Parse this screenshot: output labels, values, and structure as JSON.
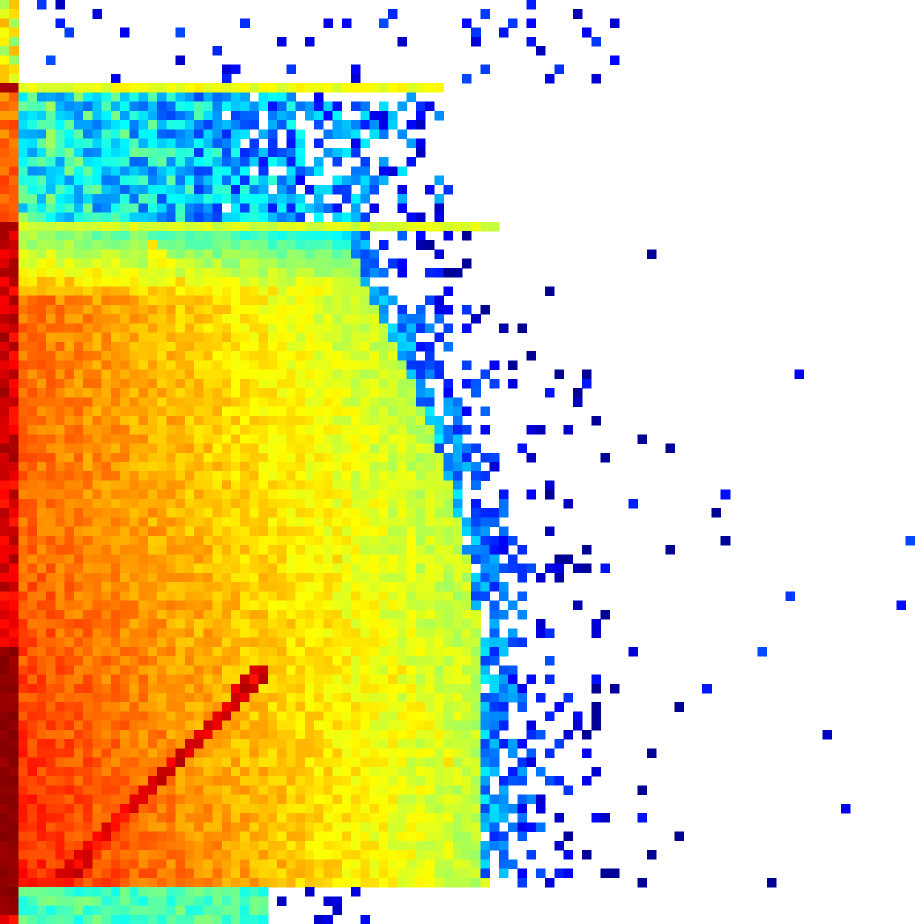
{
  "chart_data": {
    "type": "heatmap",
    "title": "",
    "xlabel": "",
    "ylabel": "",
    "grid": false,
    "legend": "none",
    "axes_visible": false,
    "colormap": "jet",
    "background": "#ffffff",
    "dimensions": {
      "cols": 100,
      "rows": 100
    },
    "value_range": [
      0,
      1
    ],
    "seed": 7,
    "structure": {
      "left_column": {
        "col_start": 0,
        "col_end": 1,
        "level": 0.95,
        "peak_rows": [
          70,
          98
        ]
      },
      "top_sparse_band": {
        "row_start": 0,
        "row_end": 8,
        "col_end": 68,
        "density": 0.07
      },
      "band_1": {
        "row_start": 9,
        "row_end": 23,
        "col_end": 47,
        "base": 0.42,
        "edge_row": 9,
        "edge_level": 0.58
      },
      "band_2": {
        "row_start": 24,
        "row_end": 95,
        "base": 0.78,
        "edge_row": 24,
        "edge_level": 0.56,
        "falloff_col_top": 36,
        "falloff_col_bottom": 52
      },
      "bottom_strip": {
        "row_start": 96,
        "row_end": 99,
        "col_end": 28,
        "level": 0.45
      },
      "diagonals": [
        {
          "from": [
            16,
            26
          ],
          "to": [
            48,
            82
          ],
          "level": 0.62
        },
        {
          "from": [
            28,
            72
          ],
          "to": [
            6,
            95
          ],
          "level": 0.9
        },
        {
          "from": [
            12,
            38
          ],
          "to": [
            42,
            70
          ],
          "level": 0.55
        }
      ],
      "outlier_region": {
        "col_start": 52,
        "col_end": 99,
        "row_start": 40,
        "row_end": 92,
        "density": 0.012
      }
    }
  }
}
